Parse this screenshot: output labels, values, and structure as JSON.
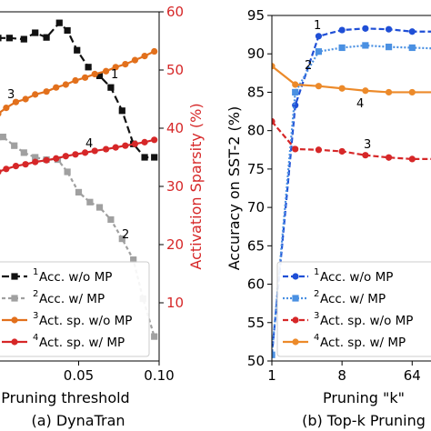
{
  "chart_data": [
    {
      "type": "line",
      "xlabel": "Pruning threshold",
      "caption": "(a) DynaTran",
      "x_ticks": [
        {
          "value": 0.05,
          "label": "0.05"
        },
        {
          "value": 0.1,
          "label": "0.10"
        }
      ],
      "xlim": [
        0.0,
        0.1
      ],
      "y2label": "Activation Sparsity (%)",
      "y2_ticks": [
        10,
        20,
        30,
        40,
        50,
        60
      ],
      "y2lim": [
        0,
        60
      ],
      "y2_color": "#d62728",
      "legend": {
        "placement": "lower-left"
      },
      "series": [
        {
          "name": "Acc. w/o MP",
          "marker_label": "1",
          "axis": "left",
          "color": "#111111",
          "dash": "8,4",
          "marker": "square",
          "x": [
            0.0,
            0.007,
            0.016,
            0.023,
            0.03,
            0.038,
            0.043,
            0.049,
            0.056,
            0.063,
            0.07,
            0.077,
            0.084,
            0.091,
            0.097
          ],
          "y": [
            55.5,
            55.5,
            55.3,
            56.4,
            55.6,
            58.1,
            56.8,
            53.4,
            50.5,
            49.0,
            47.0,
            43.0,
            37.3,
            35.0,
            35.0
          ]
        },
        {
          "name": "Acc. w/ MP",
          "marker_label": "2",
          "axis": "left",
          "color": "#a0a0a0",
          "dash": "4,3",
          "marker": "square",
          "x": [
            0.0,
            0.003,
            0.01,
            0.016,
            0.023,
            0.03,
            0.037,
            0.043,
            0.05,
            0.057,
            0.063,
            0.07,
            0.077,
            0.084,
            0.09,
            0.097
          ],
          "y": [
            38.5,
            38.5,
            37.0,
            35.8,
            35.0,
            34.6,
            34.6,
            32.5,
            29.0,
            27.3,
            26.4,
            24.3,
            21.0,
            17.4,
            10.7,
            4.2
          ]
        },
        {
          "name": "Act. sp. w/o MP",
          "marker_label": "3",
          "axis": "right",
          "color": "#e2701c",
          "dash": "",
          "marker": "circle",
          "x": [
            0.0,
            0.005,
            0.011,
            0.017,
            0.023,
            0.03,
            0.036,
            0.042,
            0.048,
            0.054,
            0.06,
            0.067,
            0.073,
            0.079,
            0.085,
            0.091,
            0.097
          ],
          "y": [
            42.5,
            43.5,
            44.5,
            45.0,
            45.8,
            46.3,
            47.0,
            47.5,
            48.2,
            48.7,
            49.3,
            49.8,
            50.5,
            51.0,
            51.7,
            52.4,
            53.2
          ]
        },
        {
          "name": "Act. sp. w/ MP",
          "marker_label": "4",
          "axis": "right",
          "color": "#d62728",
          "dash": "",
          "marker": "circle",
          "x": [
            0.0,
            0.005,
            0.011,
            0.017,
            0.023,
            0.03,
            0.036,
            0.042,
            0.048,
            0.054,
            0.06,
            0.067,
            0.073,
            0.079,
            0.085,
            0.091,
            0.097
          ],
          "y": [
            32.5,
            33.0,
            33.5,
            33.8,
            34.2,
            34.5,
            34.8,
            35.2,
            35.5,
            35.8,
            36.1,
            36.4,
            36.7,
            37.0,
            37.3,
            37.6,
            38.0
          ]
        }
      ]
    },
    {
      "type": "line",
      "xlabel": "Pruning \"k\"",
      "caption": "(b) Top-k Pruning",
      "x_ticks": [
        {
          "value": 1,
          "label": "1"
        },
        {
          "value": 8,
          "label": "8"
        },
        {
          "value": 64,
          "label": "64"
        }
      ],
      "xscale": "log2",
      "ylabel": "Accuracy on SST-2 (%)",
      "y_ticks": [
        50,
        55,
        60,
        65,
        70,
        75,
        80,
        85,
        90,
        95
      ],
      "ylim": [
        50,
        95
      ],
      "legend": {
        "placement": "lower-right"
      },
      "series": [
        {
          "name": "Acc. w/o MP",
          "marker_label": "1",
          "color": "#1f4fd6",
          "dash": "6,3",
          "marker": "circle",
          "x": [
            1,
            2,
            4,
            8,
            16,
            32,
            64,
            128
          ],
          "y": [
            50.8,
            83.3,
            92.3,
            93.1,
            93.3,
            93.2,
            92.9,
            92.9
          ]
        },
        {
          "name": "Acc. w/ MP",
          "marker_label": "2",
          "color": "#4a90e2",
          "dash": "2,2",
          "marker": "square",
          "x": [
            1,
            2,
            4,
            8,
            16,
            32,
            64,
            128
          ],
          "y": [
            50.8,
            85.0,
            90.3,
            90.8,
            91.1,
            90.9,
            90.8,
            90.7
          ]
        },
        {
          "name": "Act. sp. w/o MP",
          "marker_label": "3",
          "color": "#d62728",
          "dash": "6,3",
          "marker": "circle",
          "x": [
            1,
            2,
            4,
            8,
            16,
            32,
            64,
            128
          ],
          "y": [
            81.2,
            77.6,
            77.5,
            77.3,
            76.8,
            76.5,
            76.3,
            76.3
          ]
        },
        {
          "name": "Act. sp. w/ MP",
          "marker_label": "4",
          "color": "#ec8a2a",
          "dash": "",
          "marker": "circle",
          "x": [
            1,
            2,
            4,
            8,
            16,
            32,
            64,
            128
          ],
          "y": [
            88.4,
            86.0,
            85.8,
            85.5,
            85.2,
            85.0,
            85.0,
            85.0
          ]
        }
      ]
    }
  ]
}
